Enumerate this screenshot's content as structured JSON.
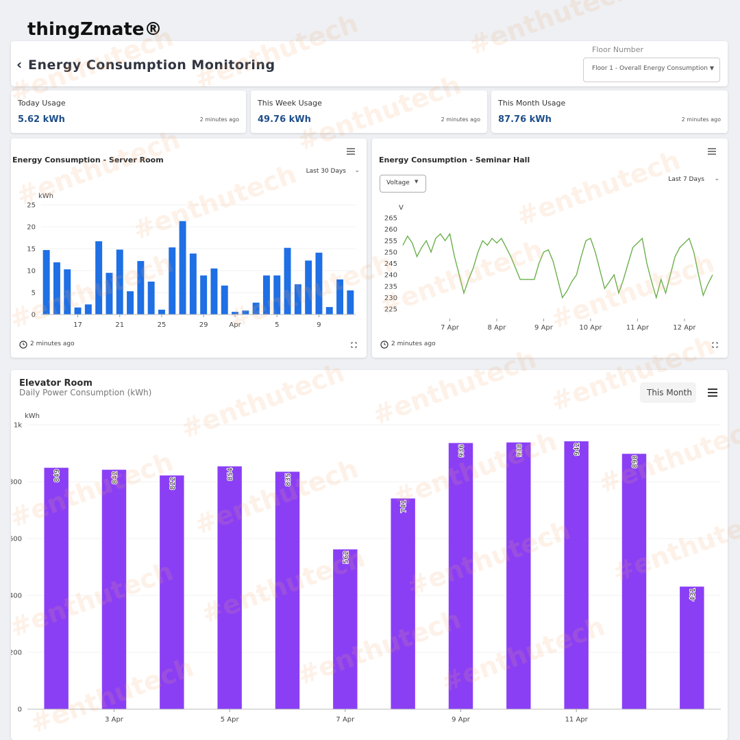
{
  "logo": "thingZmate®",
  "header": {
    "title": "Energy Consumption Monitoring",
    "floor_label": "Floor Number",
    "floor_value": "Floor 1 - Overall Energy Consumption"
  },
  "cards": [
    {
      "label": "Today Usage",
      "value": "5.62 kWh",
      "updated": "2 minutes ago"
    },
    {
      "label": "This Week Usage",
      "value": "49.76 kWh",
      "updated": "2 minutes ago"
    },
    {
      "label": "This Month Usage",
      "value": "87.76 kWh",
      "updated": "2 minutes ago"
    }
  ],
  "watermark": "#enthutech",
  "chart_data": [
    {
      "type": "bar",
      "title": "Energy Consumption - Server Room",
      "range": "Last 30 Days",
      "updated": "2 minutes ago",
      "y_label": "kWh",
      "categories": [
        null,
        null,
        null,
        "17",
        null,
        null,
        null,
        "21",
        null,
        null,
        null,
        "25",
        null,
        null,
        null,
        "29",
        null,
        null,
        "Apr",
        null,
        null,
        null,
        "5",
        null,
        null,
        null,
        "9",
        null,
        null,
        null
      ],
      "values": [
        14.7,
        11.9,
        10.3,
        1.6,
        2.3,
        16.7,
        9.5,
        14.8,
        5.3,
        12.2,
        7.5,
        1.1,
        15.3,
        21.3,
        13.9,
        8.9,
        10.5,
        6.6,
        0.6,
        0.9,
        2.7,
        8.9,
        8.9,
        15.2,
        6.9,
        12.3,
        14.1,
        1.7,
        8.0,
        5.5
      ],
      "color": "#1f6fe5",
      "ylim": [
        0,
        25
      ],
      "yticks": [
        0,
        5,
        10,
        15,
        20,
        25
      ]
    },
    {
      "type": "line",
      "title": "Energy Consumption - Seminar Hall",
      "button": "Voltage",
      "range": "Last 7 Days",
      "updated": "2 minutes ago",
      "y_label": "V",
      "x": [
        6.0,
        6.1,
        6.2,
        6.3,
        6.4,
        6.5,
        6.6,
        6.7,
        6.8,
        6.9,
        7.0,
        7.1,
        7.2,
        7.3,
        7.4,
        7.5,
        7.6,
        7.7,
        7.8,
        7.9,
        8.0,
        8.1,
        8.2,
        8.3,
        8.4,
        8.5,
        8.6,
        8.7,
        8.8,
        8.9,
        9.0,
        9.1,
        9.2,
        9.3,
        9.4,
        9.5,
        9.6,
        9.7,
        9.8,
        9.9,
        10.0,
        10.1,
        10.2,
        10.3,
        10.4,
        10.5,
        10.6,
        10.7,
        10.8,
        10.9,
        11.0,
        11.1,
        11.2,
        11.3,
        11.4,
        11.5,
        11.6,
        11.7,
        11.8,
        11.9,
        12.0,
        12.1,
        12.2,
        12.3,
        12.4,
        12.5,
        12.6
      ],
      "values": [
        253,
        257,
        254,
        248,
        252,
        255,
        250,
        256,
        258,
        255,
        258,
        248,
        240,
        232,
        238,
        243,
        250,
        255,
        253,
        256,
        254,
        256,
        252,
        248,
        243,
        238,
        238,
        238,
        238,
        245,
        250,
        251,
        246,
        238,
        230,
        233,
        237,
        240,
        248,
        255,
        256,
        250,
        242,
        234,
        237,
        240,
        232,
        238,
        245,
        252,
        254,
        256,
        245,
        237,
        230,
        238,
        232,
        240,
        248,
        252,
        254,
        256,
        250,
        240,
        231,
        236,
        240
      ],
      "color": "#6ab04c",
      "xlim": [
        6.0,
        12.6
      ],
      "xticks": [
        {
          "value": 7,
          "label": "7 Apr"
        },
        {
          "value": 8,
          "label": "8 Apr"
        },
        {
          "value": 9,
          "label": "9 Apr"
        },
        {
          "value": 10,
          "label": "10 Apr"
        },
        {
          "value": 11,
          "label": "11 Apr"
        },
        {
          "value": 12,
          "label": "12 Apr"
        }
      ],
      "ylim": [
        225,
        265
      ],
      "yticks": [
        225,
        230,
        235,
        240,
        245,
        250,
        255,
        260,
        265
      ]
    },
    {
      "type": "bar",
      "title": "Elevator Room",
      "subtitle": "Daily Power Consumption (kWh)",
      "range": "This Month",
      "y_label": "kWh",
      "categories": [
        null,
        "3 Apr",
        null,
        "5 Apr",
        null,
        "7 Apr",
        null,
        "9 Apr",
        null,
        "11 Apr",
        null,
        null
      ],
      "values": [
        849,
        842,
        822,
        854,
        835,
        562,
        741,
        936,
        938,
        942,
        898,
        431
      ],
      "color": "#8a3ff5",
      "data_labels": true,
      "ylim": [
        0,
        1000
      ],
      "yticks": [
        0,
        200,
        400,
        600,
        800,
        {
          "value": 1000,
          "label": "1k"
        }
      ]
    }
  ]
}
